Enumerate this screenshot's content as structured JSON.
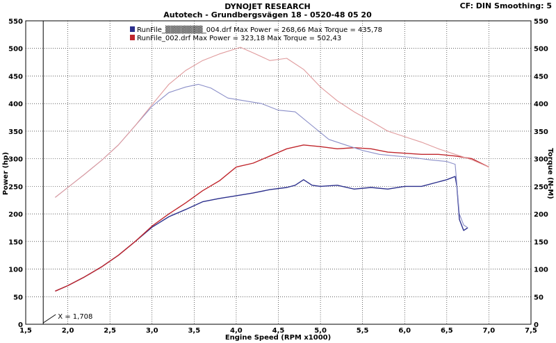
{
  "header": {
    "title": "DYNOJET RESEARCH",
    "subtitle": "Autotech - Grundbergsvägen 18 - 0520-48 05 20",
    "cf_text": "CF: DIN  Smoothing: 5"
  },
  "chart_data": {
    "type": "line",
    "xlabel": "Engine Speed (RPM x1000)",
    "ylabel_left": "Power (hp)",
    "ylabel_right": "Torque (N-M)",
    "xlim": [
      1.5,
      7.5
    ],
    "ylim": [
      0,
      550
    ],
    "x_ticks": [
      "1,5",
      "2,0",
      "2,5",
      "3,0",
      "3,5",
      "4,0",
      "4,5",
      "5,0",
      "5,5",
      "6,0",
      "6,5",
      "7,0",
      "7,5"
    ],
    "y_ticks": [
      "0",
      "50",
      "100",
      "150",
      "200",
      "250",
      "300",
      "350",
      "400",
      "450",
      "500",
      "550"
    ],
    "grid": true,
    "legend_position": "top-center",
    "cursor_label": "X = 1,708",
    "cursor_x": 1.708,
    "series": [
      {
        "name": "RunFile_004.drf",
        "legend_label": "RunFile_▒▒▒▒▒▒▒_004.drf Max Power = 268,66      Max Torque = 435,78",
        "color": "#2b2f8c",
        "kind": "power",
        "x": [
          1.85,
          2.0,
          2.2,
          2.4,
          2.6,
          2.8,
          3.0,
          3.2,
          3.4,
          3.6,
          3.8,
          4.0,
          4.2,
          4.4,
          4.6,
          4.7,
          4.8,
          4.9,
          5.0,
          5.2,
          5.4,
          5.6,
          5.8,
          6.0,
          6.2,
          6.4,
          6.5,
          6.6,
          6.62,
          6.65,
          6.7,
          6.75
        ],
        "y": [
          60,
          70,
          86,
          104,
          125,
          150,
          176,
          195,
          208,
          222,
          228,
          233,
          238,
          244,
          248,
          252,
          262,
          252,
          250,
          252,
          245,
          248,
          245,
          250,
          250,
          258,
          262,
          268,
          250,
          190,
          170,
          175
        ]
      },
      {
        "name": "RunFile_002.drf",
        "legend_label": "RunFile_002.drf Max Power = 323,18      Max Torque = 502,43",
        "color": "#c0262c",
        "kind": "power",
        "x": [
          1.85,
          2.0,
          2.2,
          2.4,
          2.6,
          2.8,
          3.0,
          3.2,
          3.4,
          3.6,
          3.8,
          4.0,
          4.2,
          4.4,
          4.6,
          4.8,
          5.0,
          5.2,
          5.4,
          5.6,
          5.8,
          6.0,
          6.2,
          6.4,
          6.6,
          6.8,
          7.0
        ],
        "y": [
          60,
          70,
          86,
          104,
          125,
          150,
          178,
          200,
          220,
          242,
          260,
          285,
          292,
          305,
          318,
          325,
          322,
          318,
          320,
          318,
          312,
          310,
          308,
          308,
          305,
          300,
          285
        ]
      },
      {
        "name": "RunFile_004.drf",
        "color": "#8a8ec8",
        "kind": "torque",
        "x": [
          1.85,
          2.0,
          2.2,
          2.4,
          2.6,
          2.8,
          3.0,
          3.2,
          3.4,
          3.55,
          3.7,
          3.9,
          4.1,
          4.3,
          4.5,
          4.7,
          4.9,
          5.1,
          5.3,
          5.5,
          5.7,
          5.9,
          6.1,
          6.3,
          6.5,
          6.6,
          6.65,
          6.7,
          6.75
        ],
        "y": [
          230,
          248,
          272,
          297,
          325,
          360,
          395,
          420,
          430,
          435,
          428,
          410,
          405,
          400,
          388,
          385,
          360,
          335,
          325,
          315,
          308,
          305,
          302,
          298,
          295,
          290,
          200,
          180,
          175
        ]
      },
      {
        "name": "RunFile_002.drf",
        "color": "#e09a9c",
        "kind": "torque",
        "x": [
          1.85,
          2.0,
          2.2,
          2.4,
          2.6,
          2.8,
          3.0,
          3.2,
          3.4,
          3.6,
          3.8,
          4.05,
          4.2,
          4.4,
          4.6,
          4.8,
          5.0,
          5.2,
          5.4,
          5.6,
          5.8,
          6.0,
          6.2,
          6.4,
          6.6,
          6.8,
          7.0
        ],
        "y": [
          230,
          248,
          272,
          297,
          325,
          360,
          398,
          435,
          460,
          478,
          490,
          502,
          492,
          478,
          482,
          462,
          430,
          405,
          385,
          368,
          350,
          340,
          330,
          318,
          308,
          298,
          285
        ]
      }
    ]
  }
}
